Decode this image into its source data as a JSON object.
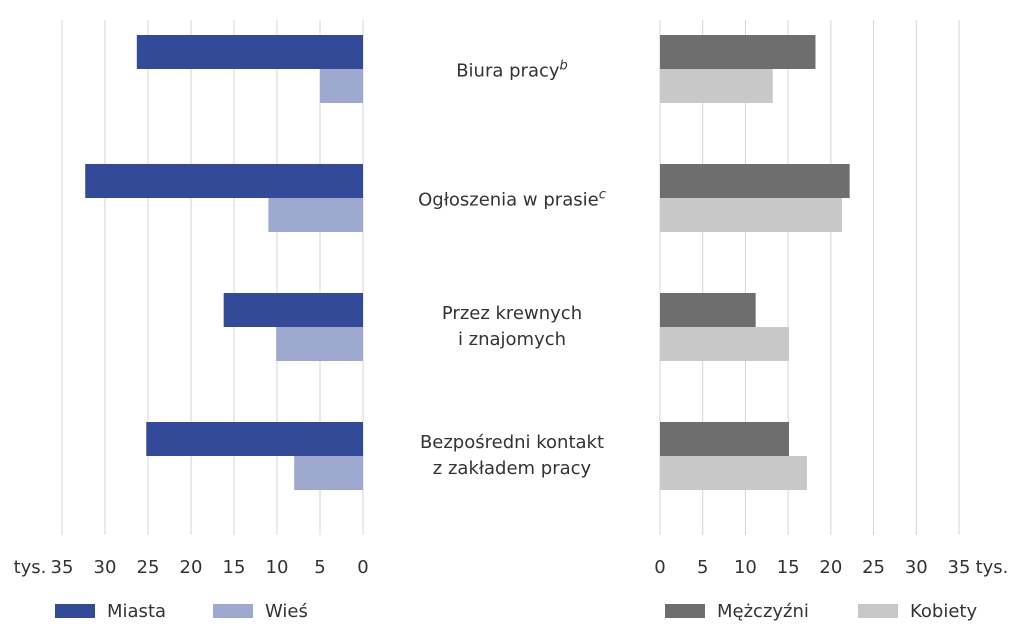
{
  "chart_data": [
    {
      "type": "bar",
      "orientation": "horizontal",
      "x_direction": "reversed",
      "categories": [
        "Biura pracy",
        "Ogłoszenia w prasie",
        "Przez krewnych\ni znajomych",
        "Bezpośredni kontakt\nz zakładem pracy"
      ],
      "category_notes": [
        "b",
        "c",
        null,
        null
      ],
      "series": [
        {
          "name": "Miasta",
          "color": "#334a99",
          "values": [
            26.3,
            32.3,
            16.2,
            25.2
          ]
        },
        {
          "name": "Wieś",
          "color": "#9ea9cf",
          "values": [
            5.0,
            11.0,
            10.1,
            8.0
          ]
        }
      ],
      "xlim": [
        0,
        35
      ],
      "xticks": [
        0,
        5,
        10,
        15,
        20,
        25,
        30,
        35
      ],
      "x_unit": "tys.",
      "grid": true
    },
    {
      "type": "bar",
      "orientation": "horizontal",
      "x_direction": "normal",
      "series": [
        {
          "name": "Mężczyźni",
          "color": "#6e6e6e",
          "values": [
            18.2,
            22.2,
            11.2,
            15.1
          ]
        },
        {
          "name": "Kobiety",
          "color": "#c8c8c8",
          "values": [
            13.2,
            21.3,
            15.1,
            17.2
          ]
        }
      ],
      "xlim": [
        0,
        35
      ],
      "xticks": [
        0,
        5,
        10,
        15,
        20,
        25,
        30,
        35
      ],
      "x_unit": "tys.",
      "grid": true
    }
  ]
}
